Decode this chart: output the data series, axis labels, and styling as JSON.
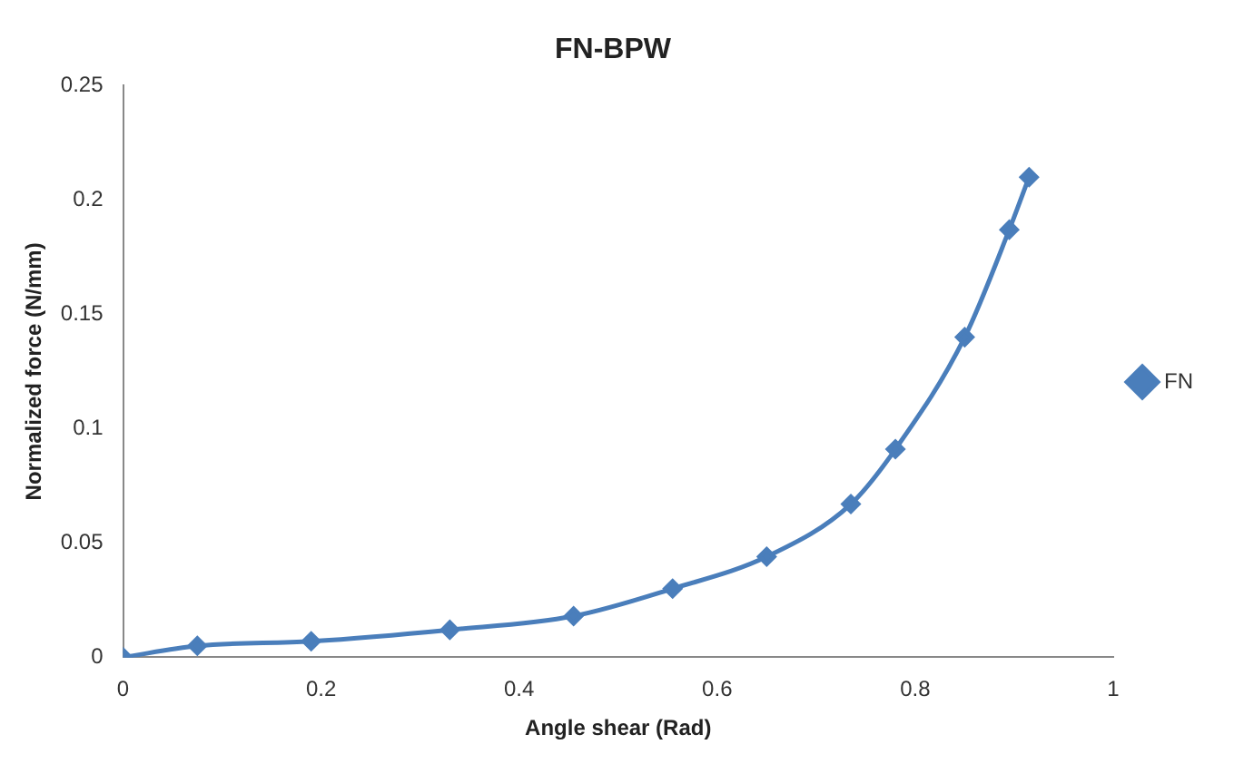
{
  "chart_data": {
    "type": "line",
    "title": "FN-BPW",
    "xlabel": "Angle shear (Rad)",
    "ylabel": "Normalized force (N/mm)",
    "x": [
      0,
      0.075,
      0.19,
      0.33,
      0.455,
      0.555,
      0.65,
      0.735,
      0.78,
      0.85,
      0.895,
      0.915
    ],
    "series": [
      {
        "name": "FN",
        "color": "#4a7ebb",
        "values": [
          0,
          0.005,
          0.007,
          0.012,
          0.018,
          0.03,
          0.044,
          0.067,
          0.091,
          0.14,
          0.187,
          0.21
        ]
      }
    ],
    "xlim": [
      0,
      1
    ],
    "xticks": [
      0,
      0.2,
      0.4,
      0.6,
      0.8,
      1
    ],
    "ylim": [
      0,
      0.25
    ],
    "yticks": [
      0,
      0.05,
      0.1,
      0.15,
      0.2,
      0.25
    ],
    "grid": false,
    "legend": "right",
    "marker": "diamond",
    "line_style": "solid"
  }
}
